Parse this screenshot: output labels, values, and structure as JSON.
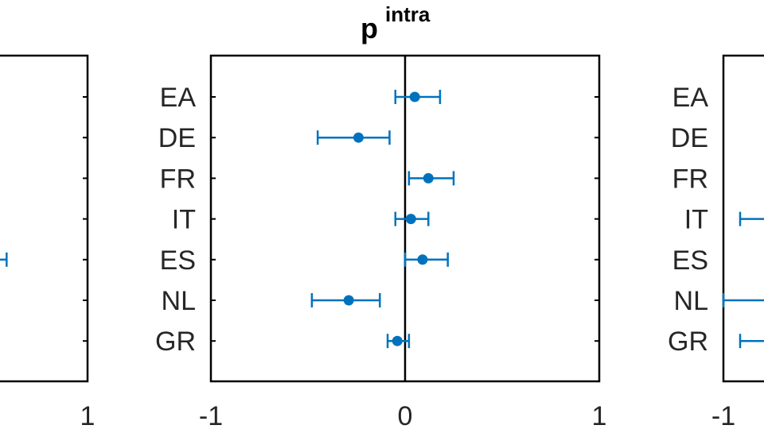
{
  "chart_data": [
    {
      "panel": "left",
      "type": "scatter",
      "title": "",
      "x_ticks": [
        1
      ],
      "x_tick_labels": [
        "1"
      ],
      "categories": [],
      "visible_errorbar": {
        "category": "ES",
        "upper": 0.38
      }
    },
    {
      "panel": "center",
      "type": "scatter",
      "title": "p",
      "title_superscript": "intra",
      "xlim": [
        -1,
        1
      ],
      "x_ticks": [
        -1,
        0,
        1
      ],
      "x_tick_labels": [
        "-1",
        "0",
        "1"
      ],
      "zero_line": true,
      "categories": [
        "EA",
        "DE",
        "FR",
        "IT",
        "ES",
        "NL",
        "GR"
      ],
      "series": [
        {
          "values": [
            0.05,
            -0.24,
            0.12,
            0.03,
            0.09,
            -0.29,
            -0.04
          ],
          "lower": [
            -0.05,
            -0.45,
            0.02,
            -0.05,
            0.0,
            -0.48,
            -0.09
          ],
          "upper": [
            0.18,
            -0.08,
            0.25,
            0.12,
            0.22,
            -0.13,
            0.02
          ],
          "color": "#0072BD"
        }
      ]
    },
    {
      "panel": "right",
      "type": "scatter",
      "title": "",
      "x_ticks": [
        -1
      ],
      "x_tick_labels": [
        "-1"
      ],
      "categories": [
        "EA",
        "DE",
        "FR",
        "IT",
        "ES",
        "NL",
        "GR"
      ],
      "visible_errorbars": [
        {
          "category": "IT",
          "lower": -0.9
        },
        {
          "category": "NL",
          "lower": -1.0
        },
        {
          "category": "GR",
          "lower": -0.9
        }
      ]
    }
  ]
}
